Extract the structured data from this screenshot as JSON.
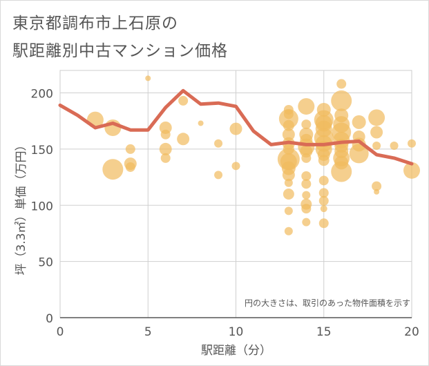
{
  "chart_data": {
    "type": "scatter",
    "title": [
      "東京都調布市上石原の",
      "駅距離別中古マンション価格"
    ],
    "xlabel": "駅距離（分）",
    "ylabel": "坪（3.3㎡）単価（万円）",
    "note": "円の大きさは、取引のあった物件面積を示す",
    "xlim": [
      0,
      20
    ],
    "ylim": [
      0,
      220
    ],
    "xticks": [
      0,
      5,
      10,
      15,
      20
    ],
    "yticks": [
      0,
      50,
      100,
      150,
      200
    ],
    "grid": true,
    "series": [
      {
        "type": "bubble",
        "color": "#f1bb5e",
        "points": [
          {
            "x": 2,
            "y": 176,
            "s": 12
          },
          {
            "x": 3,
            "y": 169,
            "s": 12
          },
          {
            "x": 3,
            "y": 132,
            "s": 15
          },
          {
            "x": 4,
            "y": 150,
            "s": 7
          },
          {
            "x": 4,
            "y": 137,
            "s": 9
          },
          {
            "x": 4,
            "y": 134,
            "s": 7
          },
          {
            "x": 5,
            "y": 213,
            "s": 4
          },
          {
            "x": 6,
            "y": 169,
            "s": 9
          },
          {
            "x": 6,
            "y": 163,
            "s": 7
          },
          {
            "x": 6,
            "y": 150,
            "s": 9
          },
          {
            "x": 6,
            "y": 142,
            "s": 7
          },
          {
            "x": 7,
            "y": 193,
            "s": 7
          },
          {
            "x": 7,
            "y": 159,
            "s": 9
          },
          {
            "x": 8,
            "y": 173,
            "s": 4
          },
          {
            "x": 9,
            "y": 155,
            "s": 6
          },
          {
            "x": 9,
            "y": 127,
            "s": 6
          },
          {
            "x": 10,
            "y": 168,
            "s": 9
          },
          {
            "x": 10,
            "y": 135,
            "s": 6
          },
          {
            "x": 13,
            "y": 185,
            "s": 7
          },
          {
            "x": 13,
            "y": 181,
            "s": 7
          },
          {
            "x": 13,
            "y": 177,
            "s": 14
          },
          {
            "x": 13,
            "y": 171,
            "s": 8
          },
          {
            "x": 13,
            "y": 163,
            "s": 9
          },
          {
            "x": 13,
            "y": 155,
            "s": 9
          },
          {
            "x": 13,
            "y": 150,
            "s": 8
          },
          {
            "x": 13,
            "y": 141,
            "s": 16
          },
          {
            "x": 13,
            "y": 139,
            "s": 12
          },
          {
            "x": 13,
            "y": 133,
            "s": 10
          },
          {
            "x": 13,
            "y": 127,
            "s": 9
          },
          {
            "x": 13,
            "y": 120,
            "s": 6
          },
          {
            "x": 13,
            "y": 110,
            "s": 8
          },
          {
            "x": 13,
            "y": 95,
            "s": 6
          },
          {
            "x": 13,
            "y": 77,
            "s": 6
          },
          {
            "x": 14,
            "y": 188,
            "s": 12
          },
          {
            "x": 14,
            "y": 172,
            "s": 7
          },
          {
            "x": 14,
            "y": 163,
            "s": 10
          },
          {
            "x": 14,
            "y": 158,
            "s": 9
          },
          {
            "x": 14,
            "y": 152,
            "s": 12
          },
          {
            "x": 14,
            "y": 148,
            "s": 9
          },
          {
            "x": 14,
            "y": 142,
            "s": 7
          },
          {
            "x": 14,
            "y": 126,
            "s": 7
          },
          {
            "x": 14,
            "y": 119,
            "s": 7
          },
          {
            "x": 14,
            "y": 109,
            "s": 6
          },
          {
            "x": 14,
            "y": 101,
            "s": 8
          },
          {
            "x": 14,
            "y": 97,
            "s": 7
          },
          {
            "x": 14,
            "y": 85,
            "s": 6
          },
          {
            "x": 15,
            "y": 185,
            "s": 10
          },
          {
            "x": 15,
            "y": 176,
            "s": 14
          },
          {
            "x": 15,
            "y": 173,
            "s": 12
          },
          {
            "x": 15,
            "y": 168,
            "s": 12
          },
          {
            "x": 15,
            "y": 160,
            "s": 14
          },
          {
            "x": 15,
            "y": 155,
            "s": 12
          },
          {
            "x": 15,
            "y": 150,
            "s": 12
          },
          {
            "x": 15,
            "y": 145,
            "s": 9
          },
          {
            "x": 15,
            "y": 140,
            "s": 8
          },
          {
            "x": 15,
            "y": 122,
            "s": 7
          },
          {
            "x": 15,
            "y": 111,
            "s": 7
          },
          {
            "x": 15,
            "y": 104,
            "s": 7
          },
          {
            "x": 15,
            "y": 97,
            "s": 5
          },
          {
            "x": 15,
            "y": 84,
            "s": 7
          },
          {
            "x": 16,
            "y": 208,
            "s": 7
          },
          {
            "x": 16,
            "y": 193,
            "s": 15
          },
          {
            "x": 16,
            "y": 180,
            "s": 10
          },
          {
            "x": 16,
            "y": 172,
            "s": 12
          },
          {
            "x": 16,
            "y": 165,
            "s": 14
          },
          {
            "x": 16,
            "y": 158,
            "s": 12
          },
          {
            "x": 16,
            "y": 153,
            "s": 10
          },
          {
            "x": 16,
            "y": 148,
            "s": 10
          },
          {
            "x": 16,
            "y": 142,
            "s": 12
          },
          {
            "x": 16,
            "y": 138,
            "s": 10
          },
          {
            "x": 16,
            "y": 130,
            "s": 15
          },
          {
            "x": 17,
            "y": 174,
            "s": 10
          },
          {
            "x": 17,
            "y": 161,
            "s": 9
          },
          {
            "x": 17,
            "y": 154,
            "s": 10
          },
          {
            "x": 17,
            "y": 146,
            "s": 14
          },
          {
            "x": 18,
            "y": 178,
            "s": 12
          },
          {
            "x": 18,
            "y": 165,
            "s": 9
          },
          {
            "x": 18,
            "y": 153,
            "s": 6
          },
          {
            "x": 18,
            "y": 117,
            "s": 7
          },
          {
            "x": 18,
            "y": 112,
            "s": 4
          },
          {
            "x": 19,
            "y": 153,
            "s": 6
          },
          {
            "x": 20,
            "y": 155,
            "s": 6
          },
          {
            "x": 20,
            "y": 131,
            "s": 12
          }
        ]
      },
      {
        "type": "line",
        "color": "#d96b55",
        "points": [
          {
            "x": 0,
            "y": 189
          },
          {
            "x": 1,
            "y": 180
          },
          {
            "x": 2,
            "y": 169
          },
          {
            "x": 3,
            "y": 173
          },
          {
            "x": 4,
            "y": 167
          },
          {
            "x": 5,
            "y": 167
          },
          {
            "x": 6,
            "y": 187
          },
          {
            "x": 7,
            "y": 202
          },
          {
            "x": 8,
            "y": 190
          },
          {
            "x": 9,
            "y": 191
          },
          {
            "x": 10,
            "y": 188
          },
          {
            "x": 11,
            "y": 166
          },
          {
            "x": 12,
            "y": 154
          },
          {
            "x": 13,
            "y": 156
          },
          {
            "x": 14,
            "y": 154
          },
          {
            "x": 15,
            "y": 154
          },
          {
            "x": 16,
            "y": 156
          },
          {
            "x": 17,
            "y": 157
          },
          {
            "x": 18,
            "y": 145
          },
          {
            "x": 19,
            "y": 142
          },
          {
            "x": 20,
            "y": 137
          }
        ]
      }
    ]
  }
}
